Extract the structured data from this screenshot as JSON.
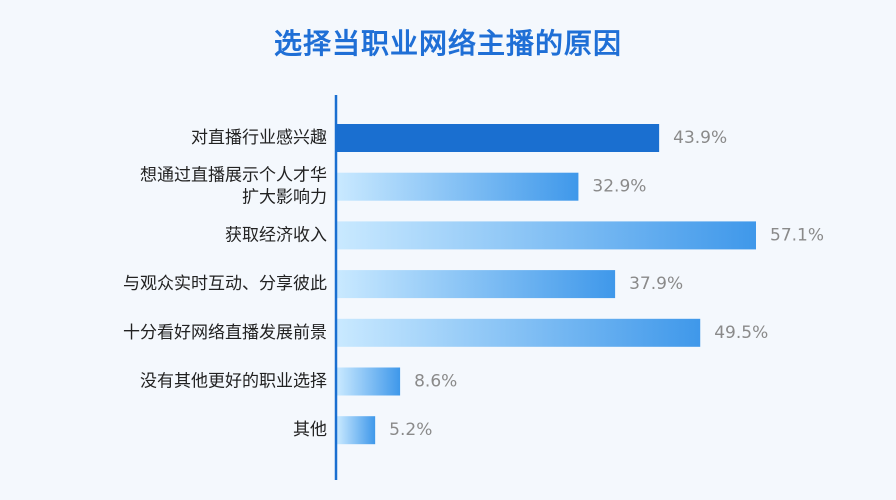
{
  "chart_data": {
    "type": "bar",
    "orientation": "horizontal",
    "title": "选择当职业网络主播的原因",
    "categories": [
      [
        "对直播行业感兴趣"
      ],
      [
        "想通过直播展示个人才华",
        "扩大影响力"
      ],
      [
        "获取经济收入"
      ],
      [
        "与观众实时互动、分享彼此"
      ],
      [
        "十分看好网络直播发展前景"
      ],
      [
        "没有其他更好的职业选择"
      ],
      [
        "其他"
      ]
    ],
    "values": [
      43.9,
      32.9,
      57.1,
      37.9,
      49.5,
      8.6,
      5.2
    ],
    "value_labels": [
      "43.9%",
      "32.9%",
      "57.1%",
      "37.9%",
      "49.5%",
      "8.6%",
      "5.2%"
    ],
    "xlim": [
      0,
      57.1
    ],
    "highlight_index": 0,
    "colors": {
      "highlight": "#1a6fd0",
      "gradient_start": "#c9e9ff",
      "gradient_end": "#3f98ea",
      "axis": "#1a6fd0",
      "title": "#1f6fd6",
      "value_text": "#8a8a8a"
    }
  }
}
